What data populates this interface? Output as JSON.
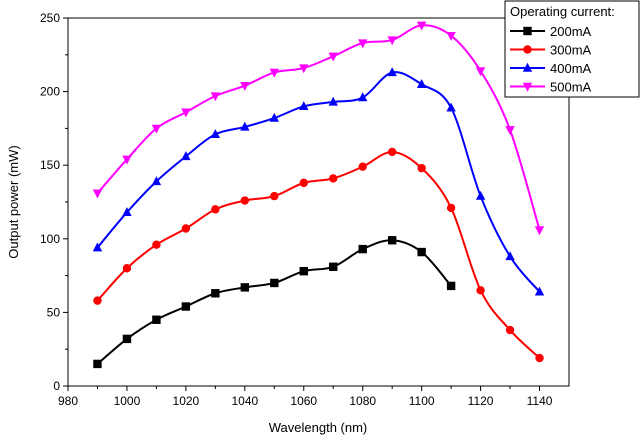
{
  "chart_data": {
    "type": "line",
    "title": "",
    "xlabel": "Wavelength (nm)",
    "ylabel": "Output power (mW)",
    "xlim": [
      980,
      1150
    ],
    "ylim": [
      0,
      250
    ],
    "xticks": [
      980,
      1000,
      1020,
      1040,
      1060,
      1080,
      1100,
      1120,
      1140
    ],
    "yticks": [
      0,
      50,
      100,
      150,
      200,
      250
    ],
    "grid": false,
    "legend": {
      "title": "Operating current:",
      "placement": "top-right"
    },
    "series": [
      {
        "name": "200mA",
        "color": "#000000",
        "marker": "square",
        "points": [
          [
            990,
            15
          ],
          [
            1000,
            32
          ],
          [
            1010,
            45
          ],
          [
            1020,
            54
          ],
          [
            1030,
            63
          ],
          [
            1040,
            67
          ],
          [
            1050,
            70
          ],
          [
            1060,
            78
          ],
          [
            1070,
            81
          ],
          [
            1080,
            93
          ],
          [
            1090,
            99
          ],
          [
            1100,
            91
          ],
          [
            1110,
            68
          ]
        ]
      },
      {
        "name": "300mA",
        "color": "#ff0000",
        "marker": "circle",
        "points": [
          [
            990,
            58
          ],
          [
            1000,
            80
          ],
          [
            1010,
            96
          ],
          [
            1020,
            107
          ],
          [
            1030,
            120
          ],
          [
            1040,
            126
          ],
          [
            1050,
            129
          ],
          [
            1060,
            138
          ],
          [
            1070,
            141
          ],
          [
            1080,
            149
          ],
          [
            1090,
            159
          ],
          [
            1100,
            148
          ],
          [
            1110,
            121
          ],
          [
            1120,
            65
          ],
          [
            1130,
            38
          ],
          [
            1140,
            19
          ]
        ]
      },
      {
        "name": "400mA",
        "color": "#0000ff",
        "marker": "triangle-up",
        "points": [
          [
            990,
            94
          ],
          [
            1000,
            118
          ],
          [
            1010,
            139
          ],
          [
            1020,
            156
          ],
          [
            1030,
            171
          ],
          [
            1040,
            176
          ],
          [
            1050,
            182
          ],
          [
            1060,
            190
          ],
          [
            1070,
            193
          ],
          [
            1080,
            196
          ],
          [
            1090,
            213
          ],
          [
            1100,
            205
          ],
          [
            1110,
            189
          ],
          [
            1120,
            129
          ],
          [
            1130,
            88
          ],
          [
            1140,
            64
          ]
        ]
      },
      {
        "name": "500mA",
        "color": "#ff00ff",
        "marker": "triangle-down",
        "points": [
          [
            990,
            131
          ],
          [
            1000,
            154
          ],
          [
            1010,
            175
          ],
          [
            1020,
            186
          ],
          [
            1030,
            197
          ],
          [
            1040,
            204
          ],
          [
            1050,
            213
          ],
          [
            1060,
            216
          ],
          [
            1070,
            224
          ],
          [
            1080,
            233
          ],
          [
            1090,
            235
          ],
          [
            1100,
            245
          ],
          [
            1110,
            238
          ],
          [
            1120,
            214
          ],
          [
            1130,
            174
          ],
          [
            1140,
            106
          ]
        ]
      }
    ]
  }
}
